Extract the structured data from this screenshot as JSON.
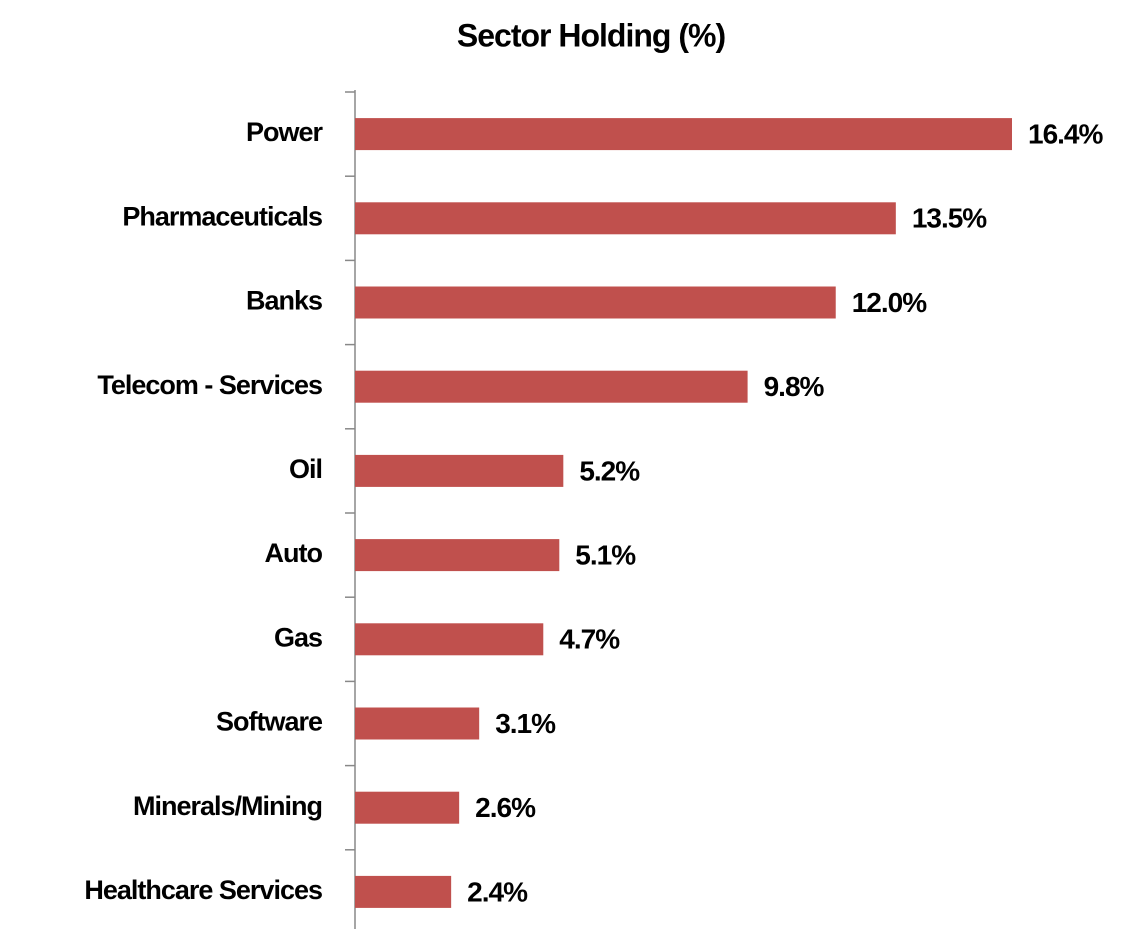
{
  "chart_data": {
    "type": "bar",
    "orientation": "horizontal",
    "title": "Sector Holding (%)",
    "categories": [
      "Power",
      "Pharmaceuticals",
      "Banks",
      "Telecom - Services",
      "Oil",
      "Auto",
      "Gas",
      "Software",
      "Minerals/Mining",
      "Healthcare Services"
    ],
    "values": [
      16.4,
      13.5,
      12.0,
      9.8,
      5.2,
      5.1,
      4.7,
      3.1,
      2.6,
      2.4
    ],
    "value_labels": [
      "16.4%",
      "13.5%",
      "12.0%",
      "9.8%",
      "5.2%",
      "5.1%",
      "4.7%",
      "3.1%",
      "2.6%",
      "2.4%"
    ],
    "color": "#c0504d"
  }
}
